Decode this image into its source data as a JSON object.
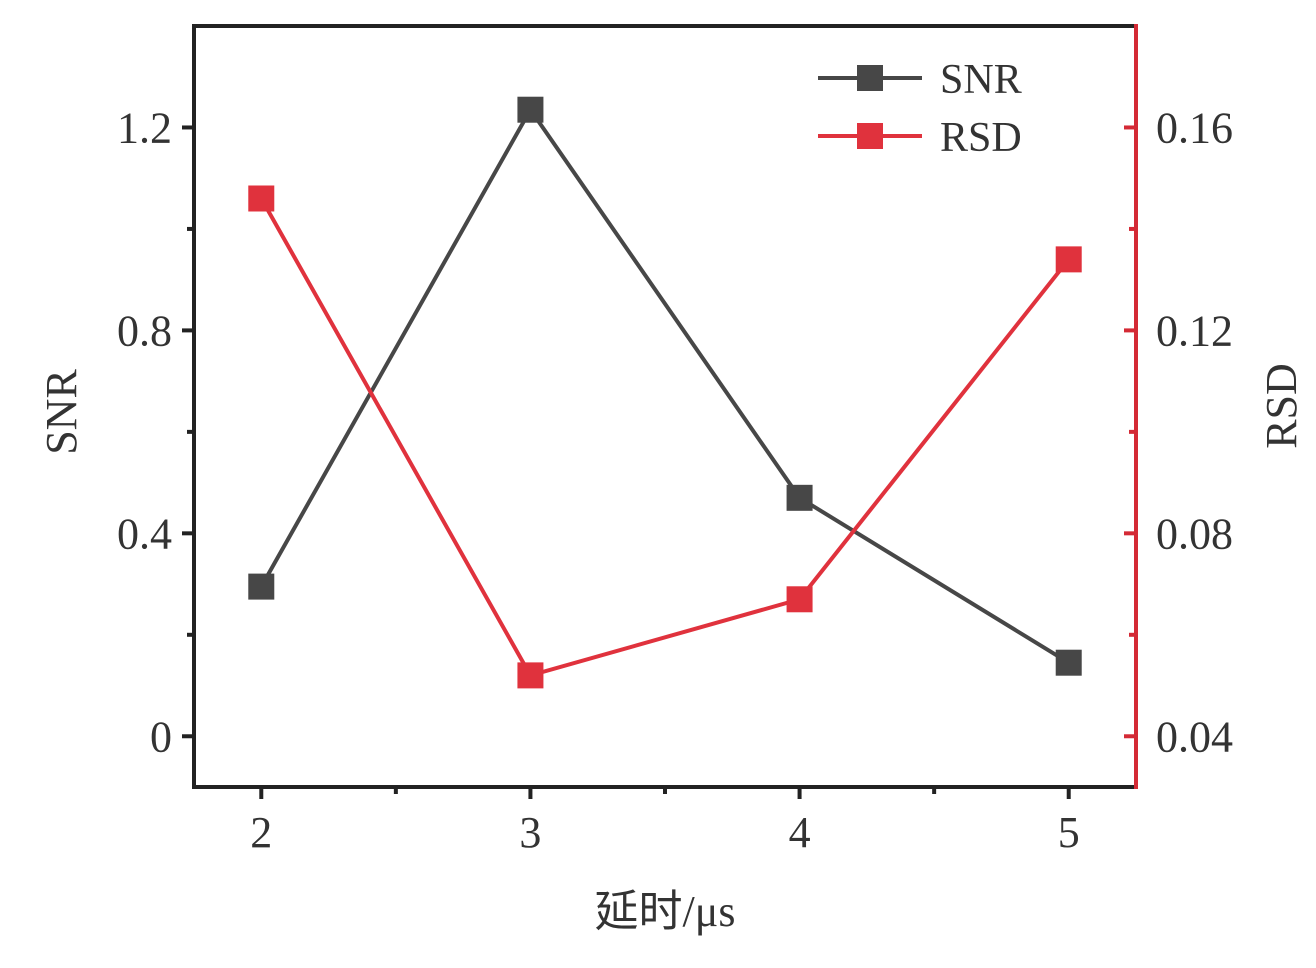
{
  "chart_data": {
    "type": "line",
    "x": [
      2,
      3,
      4,
      5
    ],
    "x_ticks": [
      "2",
      "3",
      "4",
      "5"
    ],
    "xlabel": "延时/μs",
    "xlim": [
      1.75,
      5.25
    ],
    "y_left": {
      "label": "SNR",
      "lim": [
        -0.1,
        1.4
      ],
      "ticks": [
        "0",
        "0.4",
        "0.8",
        "1.2"
      ],
      "tick_values": [
        0,
        0.4,
        0.8,
        1.2
      ],
      "color": "#222222"
    },
    "y_right": {
      "label": "RSD",
      "lim": [
        0.03,
        0.18
      ],
      "ticks": [
        "0.04",
        "0.08",
        "0.12",
        "0.16"
      ],
      "tick_values": [
        0.04,
        0.08,
        0.12,
        0.16
      ],
      "color": "#d42a35"
    },
    "series": [
      {
        "name": "SNR",
        "axis": "left",
        "color": "#474747",
        "marker": "square",
        "values": [
          0.295,
          1.235,
          0.47,
          0.145
        ]
      },
      {
        "name": "RSD",
        "axis": "right",
        "color": "#e0323d",
        "marker": "square",
        "values": [
          0.146,
          0.052,
          0.067,
          0.134
        ]
      }
    ],
    "legend": {
      "position": "top-right"
    },
    "grid": false
  }
}
